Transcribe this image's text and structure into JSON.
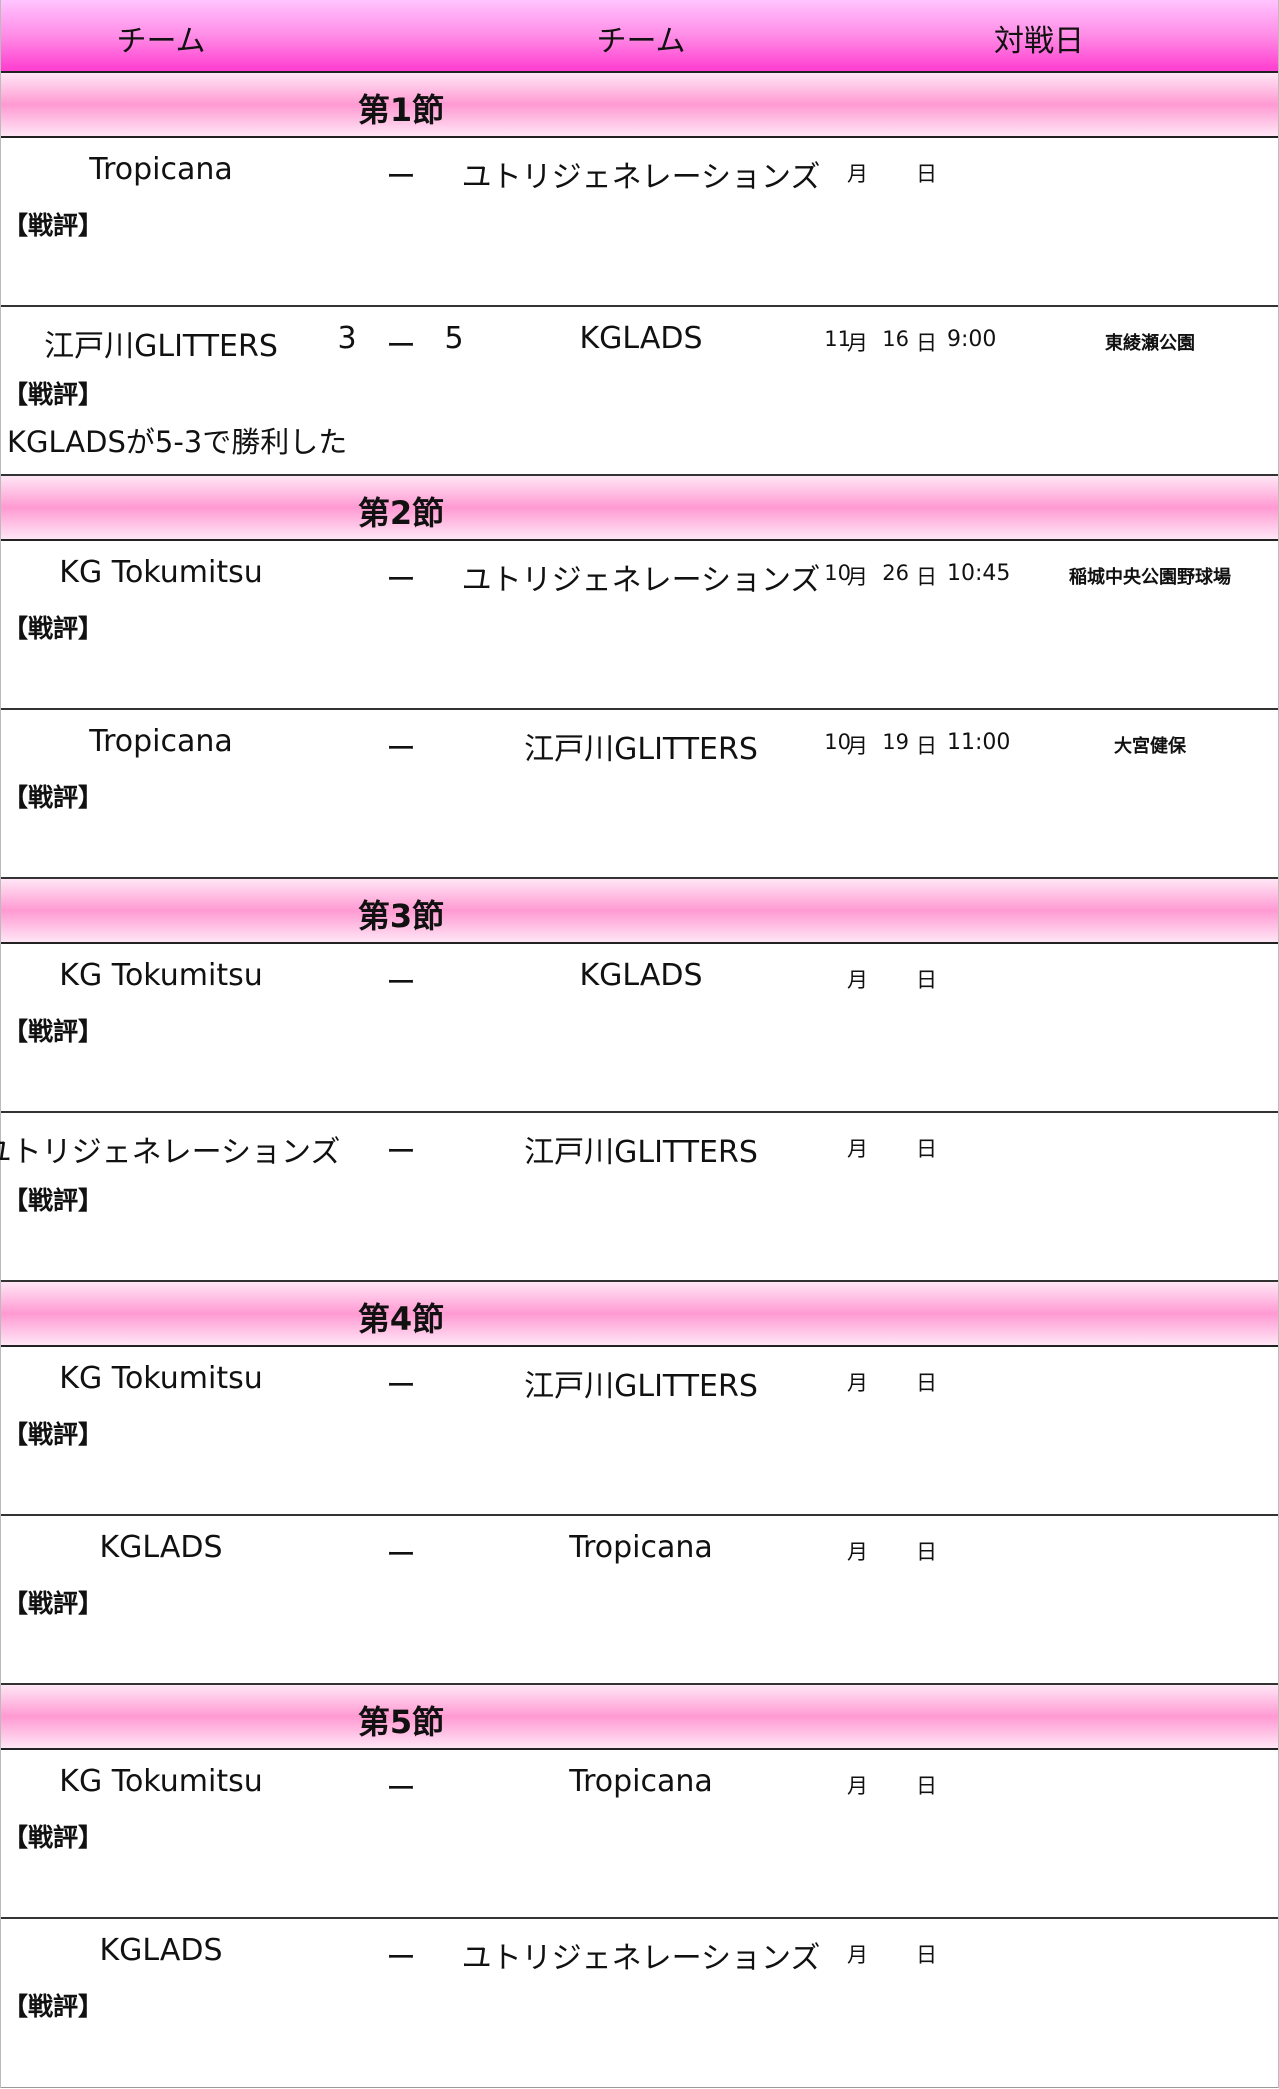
{
  "header": {
    "team1": "チーム",
    "team2": "チーム",
    "date": "対戦日"
  },
  "sections": [
    {
      "title": "第1節",
      "matches": [
        {
          "home": "Tropicana",
          "dash": "ー",
          "home_score": "",
          "away_score": "",
          "away": "ユトリジェネレーションズ",
          "month": "",
          "month_label": "月",
          "day": "",
          "day_label": "日",
          "time": "",
          "venue": "",
          "review_label": "【戦評】",
          "review": ""
        },
        {
          "home": "江戸川GLITTERS",
          "dash": "ー",
          "home_score": "3",
          "away_score": "5",
          "away": "KGLADS",
          "month": "11",
          "month_label": "月",
          "day": "16",
          "day_label": "日",
          "time": "9:00",
          "venue": "東綾瀬公園",
          "review_label": "【戦評】",
          "review": "KGLADSが5-3で勝利した"
        }
      ]
    },
    {
      "title": "第2節",
      "matches": [
        {
          "home": "KG Tokumitsu",
          "dash": "ー",
          "home_score": "",
          "away_score": "",
          "away": "ユトリジェネレーションズ",
          "month": "10",
          "month_label": "月",
          "day": "26",
          "day_label": "日",
          "time": "10:45",
          "venue": "稲城中央公園野球場",
          "review_label": "【戦評】",
          "review": ""
        },
        {
          "home": "Tropicana",
          "dash": "ー",
          "home_score": "",
          "away_score": "",
          "away": "江戸川GLITTERS",
          "month": "10",
          "month_label": "月",
          "day": "19",
          "day_label": "日",
          "time": "11:00",
          "venue": "大宮健保",
          "review_label": "【戦評】",
          "review": ""
        }
      ]
    },
    {
      "title": "第3節",
      "matches": [
        {
          "home": "KG Tokumitsu",
          "dash": "ー",
          "home_score": "",
          "away_score": "",
          "away": "KGLADS",
          "month": "",
          "month_label": "月",
          "day": "",
          "day_label": "日",
          "time": "",
          "venue": "",
          "review_label": "【戦評】",
          "review": ""
        },
        {
          "home": "ユトリジェネレーションズ",
          "dash": "ー",
          "home_score": "",
          "away_score": "",
          "away": "江戸川GLITTERS",
          "month": "",
          "month_label": "月",
          "day": "",
          "day_label": "日",
          "time": "",
          "venue": "",
          "review_label": "【戦評】",
          "review": ""
        }
      ]
    },
    {
      "title": "第4節",
      "matches": [
        {
          "home": "KG Tokumitsu",
          "dash": "ー",
          "home_score": "",
          "away_score": "",
          "away": "江戸川GLITTERS",
          "month": "",
          "month_label": "月",
          "day": "",
          "day_label": "日",
          "time": "",
          "venue": "",
          "review_label": "【戦評】",
          "review": ""
        },
        {
          "home": "KGLADS",
          "dash": "ー",
          "home_score": "",
          "away_score": "",
          "away": "Tropicana",
          "month": "",
          "month_label": "月",
          "day": "",
          "day_label": "日",
          "time": "",
          "venue": "",
          "review_label": "【戦評】",
          "review": ""
        }
      ]
    },
    {
      "title": "第5節",
      "matches": [
        {
          "home": "KG Tokumitsu",
          "dash": "ー",
          "home_score": "",
          "away_score": "",
          "away": "Tropicana",
          "month": "",
          "month_label": "月",
          "day": "",
          "day_label": "日",
          "time": "",
          "venue": "",
          "review_label": "【戦評】",
          "review": ""
        },
        {
          "home": "KGLADS",
          "dash": "ー",
          "home_score": "",
          "away_score": "",
          "away": "ユトリジェネレーションズ",
          "month": "",
          "month_label": "月",
          "day": "",
          "day_label": "日",
          "time": "",
          "venue": "",
          "review_label": "【戦評】",
          "review": ""
        }
      ]
    }
  ]
}
